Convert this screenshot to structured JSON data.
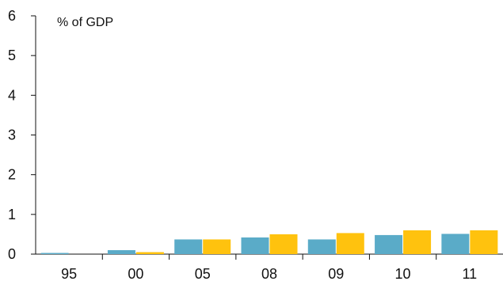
{
  "chart_data": {
    "type": "bar",
    "unit_label": "% of GDP",
    "categories": [
      "95",
      "00",
      "05",
      "08",
      "09",
      "10",
      "11"
    ],
    "series": [
      {
        "color": "#5aabc8",
        "values": [
          0.03,
          0.1,
          0.37,
          0.42,
          0.37,
          0.48,
          0.51
        ]
      },
      {
        "color": "#ffc20e",
        "values": [
          0.0,
          0.05,
          0.37,
          0.5,
          0.53,
          0.6,
          0.6
        ]
      }
    ],
    "ylim": [
      0,
      6
    ],
    "yticks": [
      "0",
      "1",
      "2",
      "3",
      "4",
      "5",
      "6"
    ],
    "grid": false,
    "legend": "none"
  }
}
